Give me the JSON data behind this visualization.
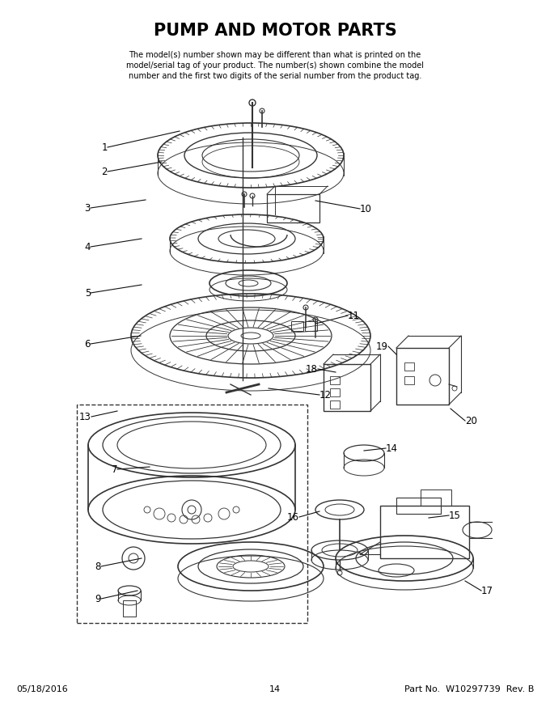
{
  "title": "PUMP AND MOTOR PARTS",
  "subtitle_lines": [
    "The model(s) number shown may be different than what is printed on the",
    "model/serial tag of your product. The number(s) shown combine the model",
    "number and the first two digits of the serial number from the product tag."
  ],
  "footer_left": "05/18/2016",
  "footer_center": "14",
  "footer_right": "Part No.  W10297739  Rev. B",
  "bg_color": "#ffffff",
  "text_color": "#000000",
  "fig_w": 6.8,
  "fig_h": 8.8,
  "dpi": 100
}
